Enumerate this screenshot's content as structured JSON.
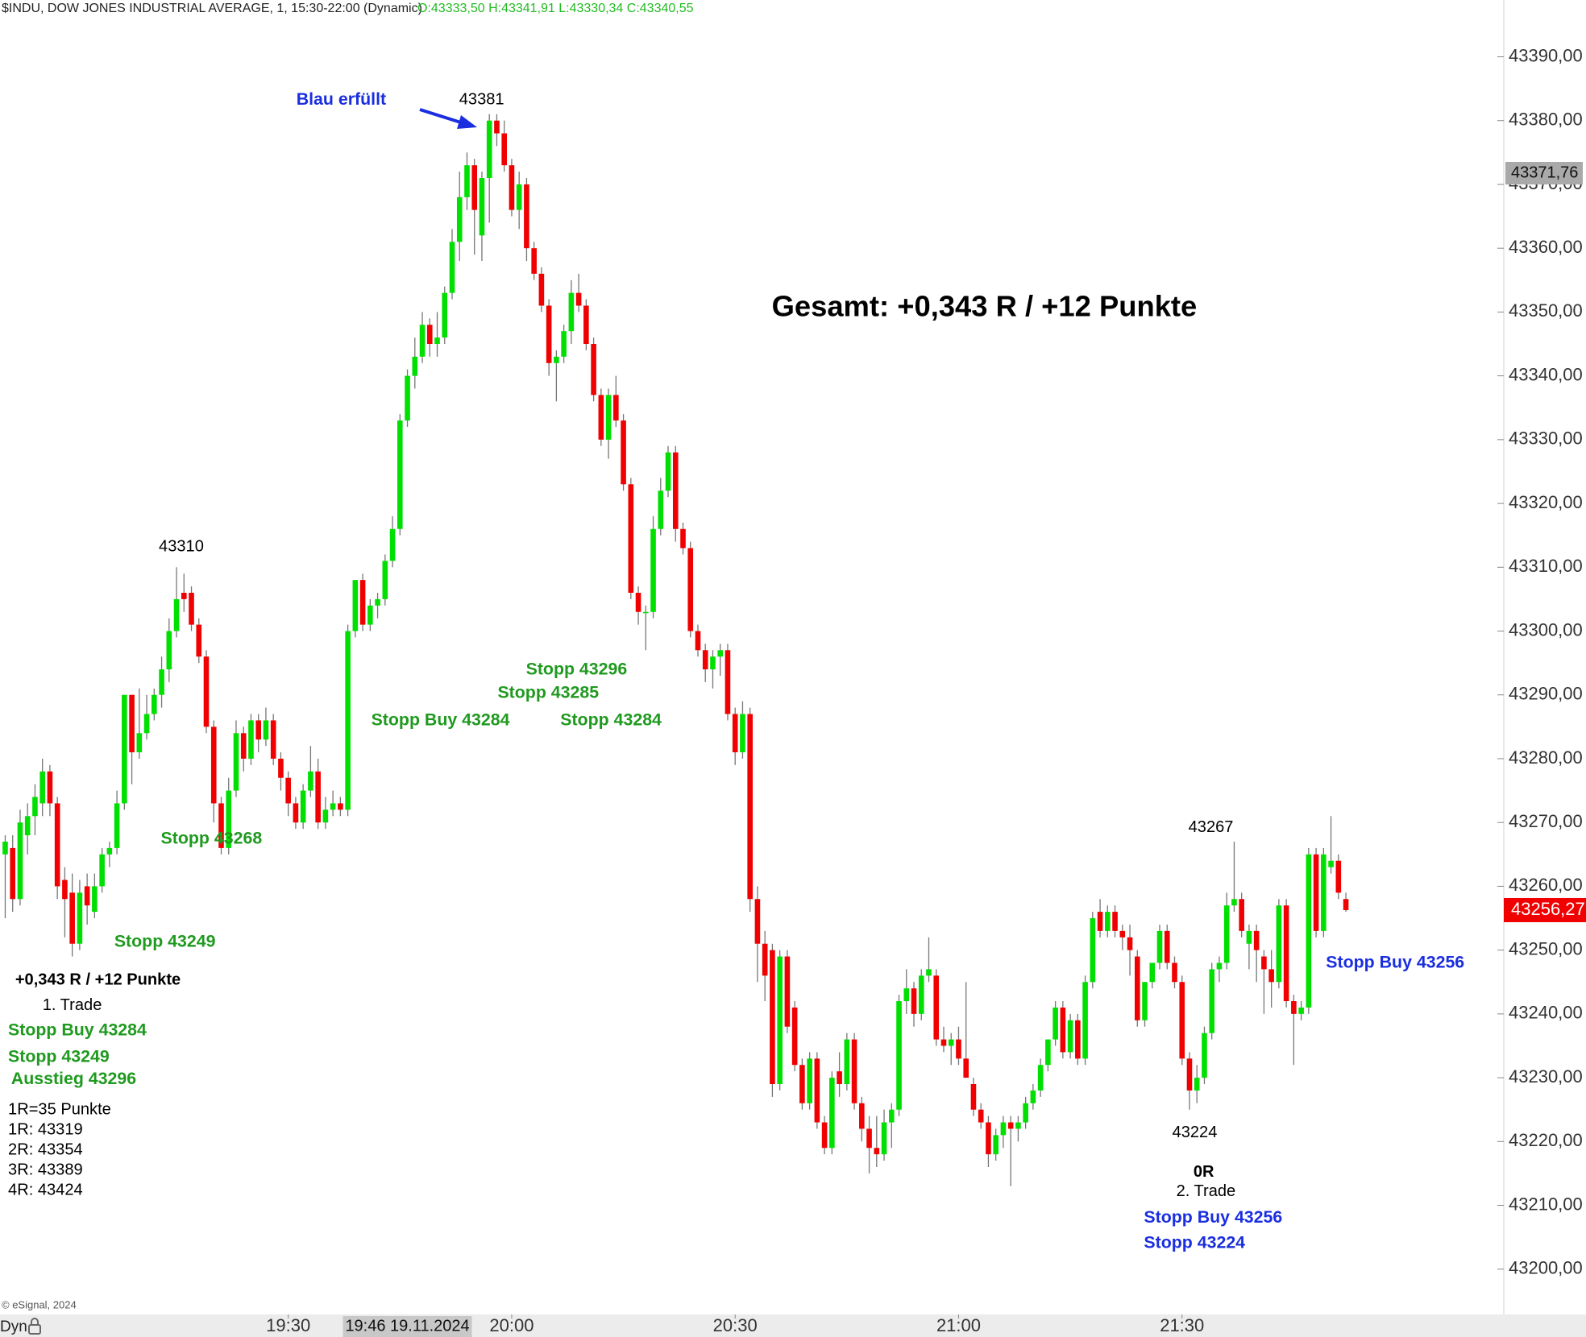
{
  "chart_data": {
    "type": "candlestick",
    "title": "$INDU, DOW JONES INDUSTRIAL AVERAGE, 1, 15:30-22:00 (Dynamic)",
    "ohlc_text": "O:43333,50 H:43341,91 L:43330,34 C:43340,55",
    "ohlc_text_color": "#22bb22",
    "copyright": "© eSignal, 2024",
    "mode_label": "Dyn",
    "up_color": "#00e000",
    "down_color": "#f00000",
    "wick_color": "#777777",
    "grid": false,
    "xlim": [
      1131.3,
      1333.2
    ],
    "xticks": [
      {
        "value": 1170,
        "label": "19:30"
      },
      {
        "value": 1200,
        "label": "20:00"
      },
      {
        "value": 1230,
        "label": "20:30"
      },
      {
        "value": 1260,
        "label": "21:00"
      },
      {
        "value": 1290,
        "label": "21:30"
      }
    ],
    "ylim": [
      43192.9,
      43398.9
    ],
    "yticks": [
      {
        "value": 43200,
        "label": "43200,00"
      },
      {
        "value": 43210,
        "label": "43210,00"
      },
      {
        "value": 43220,
        "label": "43220,00"
      },
      {
        "value": 43230,
        "label": "43230,00"
      },
      {
        "value": 43240,
        "label": "43240,00"
      },
      {
        "value": 43250,
        "label": "43250,00"
      },
      {
        "value": 43260,
        "label": "43260,00"
      },
      {
        "value": 43270,
        "label": "43270,00"
      },
      {
        "value": 43280,
        "label": "43280,00"
      },
      {
        "value": 43290,
        "label": "43290,00"
      },
      {
        "value": 43300,
        "label": "43300,00"
      },
      {
        "value": 43310,
        "label": "43310,00"
      },
      {
        "value": 43320,
        "label": "43320,00"
      },
      {
        "value": 43330,
        "label": "43330,00"
      },
      {
        "value": 43340,
        "label": "43340,00"
      },
      {
        "value": 43350,
        "label": "43350,00"
      },
      {
        "value": 43360,
        "label": "43360,00"
      },
      {
        "value": 43370,
        "label": "43370,00"
      },
      {
        "value": 43380,
        "label": "43380,00"
      },
      {
        "value": 43390,
        "label": "43390,00"
      }
    ],
    "crosshair_x": {
      "value": 1186,
      "label": "19:46 19.11.2024"
    },
    "crosshair_y": {
      "value": 43371.76,
      "label": "43371,76"
    },
    "last_price": {
      "value": 43256.27,
      "label": "43256,27"
    },
    "x": [
      1132,
      1133,
      1134,
      1135,
      1136,
      1137,
      1138,
      1139,
      1140,
      1141,
      1142,
      1143,
      1144,
      1145,
      1146,
      1147,
      1148,
      1149,
      1150,
      1151,
      1152,
      1153,
      1154,
      1155,
      1156,
      1157,
      1158,
      1159,
      1160,
      1161,
      1162,
      1163,
      1164,
      1165,
      1166,
      1167,
      1168,
      1169,
      1170,
      1171,
      1172,
      1173,
      1174,
      1175,
      1176,
      1177,
      1178,
      1179,
      1180,
      1181,
      1182,
      1183,
      1184,
      1185,
      1186,
      1187,
      1188,
      1189,
      1190,
      1191,
      1192,
      1193,
      1194,
      1195,
      1196,
      1197,
      1198,
      1199,
      1200,
      1201,
      1202,
      1203,
      1204,
      1205,
      1206,
      1207,
      1208,
      1209,
      1210,
      1211,
      1212,
      1213,
      1214,
      1215,
      1216,
      1217,
      1218,
      1219,
      1220,
      1221,
      1222,
      1223,
      1224,
      1225,
      1226,
      1227,
      1228,
      1229,
      1230,
      1231,
      1232,
      1233,
      1234,
      1235,
      1236,
      1237,
      1238,
      1239,
      1240,
      1241,
      1242,
      1243,
      1244,
      1245,
      1246,
      1247,
      1248,
      1249,
      1250,
      1251,
      1252,
      1253,
      1254,
      1255,
      1256,
      1257,
      1258,
      1259,
      1260,
      1261,
      1262,
      1263,
      1264,
      1265,
      1266,
      1267,
      1268,
      1269,
      1270,
      1271,
      1272,
      1273,
      1274,
      1275,
      1276,
      1277,
      1278,
      1279,
      1280,
      1281,
      1282,
      1283,
      1284,
      1285,
      1286,
      1287,
      1288,
      1289,
      1290,
      1291,
      1292,
      1293,
      1294,
      1295,
      1296,
      1297,
      1298,
      1299,
      1300,
      1301,
      1302,
      1303,
      1304,
      1305,
      1306,
      1307,
      1308,
      1309,
      1310,
      1311,
      1312
    ],
    "open": [
      43265,
      43266,
      43258,
      43268,
      43271,
      43273,
      43278,
      43273,
      43261,
      43259,
      43251,
      43260,
      43256,
      43260,
      43265,
      43266,
      43273,
      43290,
      43281,
      43284,
      43287,
      43290,
      43294,
      43300,
      43306,
      43306,
      43301,
      43296,
      43285,
      43273,
      43266,
      43275,
      43284,
      43280,
      43286,
      43283,
      43286,
      43280,
      43277,
      43273,
      43270,
      43275,
      43278,
      43270,
      43272,
      43273,
      43272,
      43300,
      43308,
      43301,
      43304,
      43305,
      43311,
      43316,
      43333,
      43340,
      43343,
      43348,
      43345,
      43346,
      43353,
      43361,
      43368,
      43373,
      43362,
      43371,
      43380,
      43378,
      43373,
      43366,
      43370,
      43360,
      43356,
      43351,
      43342,
      43343,
      43347,
      43353,
      43351,
      43345,
      43337,
      43330,
      43337,
      43333,
      43323,
      43306,
      43303,
      43303,
      43316,
      43322,
      43328,
      43316,
      43313,
      43300,
      43297,
      43294,
      43296,
      43297,
      43287,
      43281,
      43287,
      43258,
      43251,
      43250,
      43229,
      43249,
      43241,
      43232,
      43226,
      43233,
      43223,
      43219,
      43231,
      43229,
      43236,
      43226,
      43222,
      43219,
      43218,
      43223,
      43225,
      43242,
      43244,
      43240,
      43246,
      43246,
      43236,
      43235,
      43236,
      43233,
      43229,
      43225,
      43223,
      43218,
      43221,
      43223,
      43222,
      43223,
      43226,
      43228,
      43232,
      43236,
      43241,
      43234,
      43239,
      43233,
      43245,
      43256,
      43253,
      43256,
      43253,
      43252,
      43249,
      43239,
      43245,
      43248,
      43253,
      43248,
      43245,
      43233,
      43228,
      43230,
      43237,
      43247,
      43248,
      43257,
      43258,
      43251,
      43253,
      43249,
      43247,
      43245,
      43257,
      43242,
      43240,
      43241,
      43265,
      43253,
      43263,
      43264,
      43258
    ],
    "high": [
      43268,
      43268,
      43272,
      43273,
      43276,
      43280,
      43279,
      43274,
      43263,
      43262,
      43261,
      43262,
      43262,
      43266,
      43267,
      43275,
      43290,
      43290,
      43291,
      43290,
      43291,
      43296,
      43302,
      43310,
      43309,
      43307,
      43302,
      43297,
      43286,
      43274,
      43277,
      43286,
      43285,
      43287,
      43287,
      43288,
      43287,
      43281,
      43278,
      43274,
      43276,
      43282,
      43280,
      43274,
      43275,
      43274,
      43301,
      43308,
      43309,
      43305,
      43306,
      43312,
      43318,
      43334,
      43341,
      43346,
      43350,
      43349,
      43350,
      43354,
      43363,
      43372,
      43375,
      43374,
      43372,
      43381,
      43381,
      43380,
      43374,
      43372,
      43371,
      43361,
      43357,
      43352,
      43344,
      43348,
      43355,
      43356,
      43352,
      43346,
      43338,
      43338,
      43340,
      43334,
      43324,
      43307,
      43304,
      43318,
      43324,
      43329,
      43329,
      43317,
      43314,
      43301,
      43298,
      43297,
      43298,
      43298,
      43288,
      43289,
      43288,
      43260,
      43253,
      43251,
      43250,
      43250,
      43242,
      43233,
      43234,
      43234,
      43224,
      43231,
      43234,
      43237,
      43237,
      43227,
      43224,
      43224,
      43225,
      43226,
      43243,
      43247,
      43245,
      43247,
      43252,
      43247,
      43238,
      43237,
      43238,
      43245,
      43230,
      43226,
      43224,
      43222,
      43224,
      43224,
      43224,
      43227,
      43229,
      43233,
      43236,
      43242,
      43242,
      43240,
      43240,
      43246,
      43256,
      43258,
      43257,
      43257,
      43254,
      43254,
      43250,
      43245,
      43248,
      43254,
      43254,
      43249,
      43246,
      43234,
      43232,
      43238,
      43248,
      43249,
      43259,
      43267,
      43259,
      43254,
      43254,
      43250,
      43250,
      43258,
      43258,
      43243,
      43242,
      43266,
      43266,
      43266,
      43271,
      43265,
      43259
    ],
    "low": [
      43255,
      43256,
      43257,
      43265,
      43268,
      43271,
      43271,
      43258,
      43252,
      43249,
      43250,
      43254,
      43255,
      43259,
      43263,
      43265,
      43272,
      43276,
      43280,
      43283,
      43286,
      43288,
      43292,
      43299,
      43303,
      43300,
      43295,
      43284,
      43270,
      43265,
      43265,
      43274,
      43278,
      43279,
      43281,
      43282,
      43279,
      43275,
      43271,
      43269,
      43269,
      43274,
      43269,
      43269,
      43271,
      43271,
      43271,
      43299,
      43300,
      43300,
      43302,
      43304,
      43310,
      43315,
      43332,
      43338,
      43342,
      43343,
      43343,
      43345,
      43352,
      43358,
      43366,
      43359,
      43358,
      43364,
      43376,
      43372,
      43365,
      43363,
      43358,
      43355,
      43350,
      43340,
      43336,
      43342,
      43345,
      43350,
      43344,
      43336,
      43329,
      43327,
      43332,
      43322,
      43305,
      43301,
      43297,
      43302,
      43315,
      43321,
      43314,
      43312,
      43299,
      43296,
      43292,
      43291,
      43293,
      43286,
      43279,
      43280,
      43256,
      43245,
      43242,
      43227,
      43228,
      43237,
      43231,
      43225,
      43225,
      43222,
      43218,
      43218,
      43227,
      43228,
      43225,
      43220,
      43215,
      43216,
      43217,
      43219,
      43224,
      43240,
      43238,
      43239,
      43245,
      43235,
      43234,
      43232,
      43232,
      43230,
      43224,
      43222,
      43216,
      43217,
      43219,
      43213,
      43220,
      43222,
      43225,
      43227,
      43231,
      43235,
      43233,
      43233,
      43232,
      43232,
      43244,
      43252,
      43252,
      43252,
      43250,
      43246,
      43238,
      43238,
      43244,
      43247,
      43247,
      43244,
      43232,
      43225,
      43226,
      43229,
      43236,
      43245,
      43247,
      43256,
      43252,
      43247,
      43245,
      43240,
      43241,
      43244,
      43241,
      43232,
      43239,
      43240,
      43252,
      43252,
      43262,
      43258,
      43256
    ],
    "close": [
      43267,
      43258,
      43270,
      43271,
      43274,
      43278,
      43273,
      43260,
      43258,
      43251,
      43259,
      43257,
      43260,
      43265,
      43266,
      43273,
      43290,
      43281,
      43284,
      43287,
      43290,
      43294,
      43300,
      43305,
      43305,
      43301,
      43296,
      43285,
      43273,
      43266,
      43275,
      43284,
      43280,
      43286,
      43283,
      43286,
      43280,
      43277,
      43273,
      43270,
      43275,
      43278,
      43270,
      43272,
      43273,
      43272,
      43300,
      43308,
      43301,
      43304,
      43305,
      43311,
      43316,
      43333,
      43340,
      43343,
      43348,
      43345,
      43346,
      43353,
      43361,
      43368,
      43373,
      43366,
      43371,
      43380,
      43378,
      43373,
      43366,
      43370,
      43360,
      43356,
      43351,
      43342,
      43343,
      43347,
      43353,
      43351,
      43345,
      43337,
      43330,
      43337,
      43333,
      43323,
      43306,
      43303,
      43303,
      43316,
      43322,
      43328,
      43316,
      43313,
      43300,
      43297,
      43294,
      43296,
      43297,
      43287,
      43281,
      43287,
      43258,
      43251,
      43246,
      43229,
      43249,
      43238,
      43232,
      43226,
      43233,
      43223,
      43219,
      43230,
      43229,
      43236,
      43226,
      43222,
      43219,
      43218,
      43223,
      43225,
      43242,
      43244,
      43240,
      43246,
      43247,
      43236,
      43235,
      43236,
      43233,
      43230,
      43225,
      43223,
      43218,
      43221,
      43223,
      43222,
      43223,
      43226,
      43228,
      43232,
      43236,
      43241,
      43234,
      43239,
      43233,
      43245,
      43255,
      43253,
      43256,
      43253,
      43252,
      43250,
      43239,
      43245,
      43248,
      43253,
      43248,
      43245,
      43233,
      43228,
      43230,
      43237,
      43247,
      43248,
      43257,
      43258,
      43253,
      43253,
      43250,
      43247,
      43245,
      43257,
      43242,
      43240,
      43241,
      43265,
      43253,
      43265,
      43264,
      43259,
      43256.27
    ],
    "annotations": [
      {
        "text": "Blau erfüllt",
        "color": "#1a2ee0"
      },
      {
        "text": "43381",
        "color": "#000000"
      },
      {
        "text": "43310",
        "color": "#000000"
      },
      {
        "text": "Gesamt: +0,343 R / +12 Punkte",
        "color": "#000000"
      },
      {
        "text": "Stopp 43296",
        "color": "#1f9a1f"
      },
      {
        "text": "Stopp 43285",
        "color": "#1f9a1f"
      },
      {
        "text": "Stopp Buy 43284",
        "color": "#1f9a1f"
      },
      {
        "text": "Stopp 43284",
        "color": "#1f9a1f"
      },
      {
        "text": "Stopp 43268",
        "color": "#1f9a1f"
      },
      {
        "text": "Stopp 43249",
        "color": "#1f9a1f"
      },
      {
        "text": "+0,343 R / +12 Punkte",
        "color": "#000000"
      },
      {
        "text": "1. Trade",
        "color": "#000000"
      },
      {
        "text": "Stopp Buy 43284",
        "color": "#1f9a1f"
      },
      {
        "text": "Stopp 43249",
        "color": "#1f9a1f"
      },
      {
        "text": "Ausstieg 43296",
        "color": "#1f9a1f"
      },
      {
        "text": "1R=35 Punkte",
        "color": "#000000"
      },
      {
        "text": "1R: 43319",
        "color": "#000000"
      },
      {
        "text": "2R: 43354",
        "color": "#000000"
      },
      {
        "text": "3R: 43389",
        "color": "#000000"
      },
      {
        "text": "4R: 43424",
        "color": "#000000"
      },
      {
        "text": "43267",
        "color": "#000000"
      },
      {
        "text": "43224",
        "color": "#000000"
      },
      {
        "text": "0R",
        "color": "#000000"
      },
      {
        "text": "2. Trade",
        "color": "#000000"
      },
      {
        "text": "Stopp Buy 43256",
        "color": "#1a2ee0"
      },
      {
        "text": "Stopp 43224",
        "color": "#1a2ee0"
      },
      {
        "text": "Stopp Buy 43256",
        "color": "#1a2ee0"
      }
    ]
  }
}
